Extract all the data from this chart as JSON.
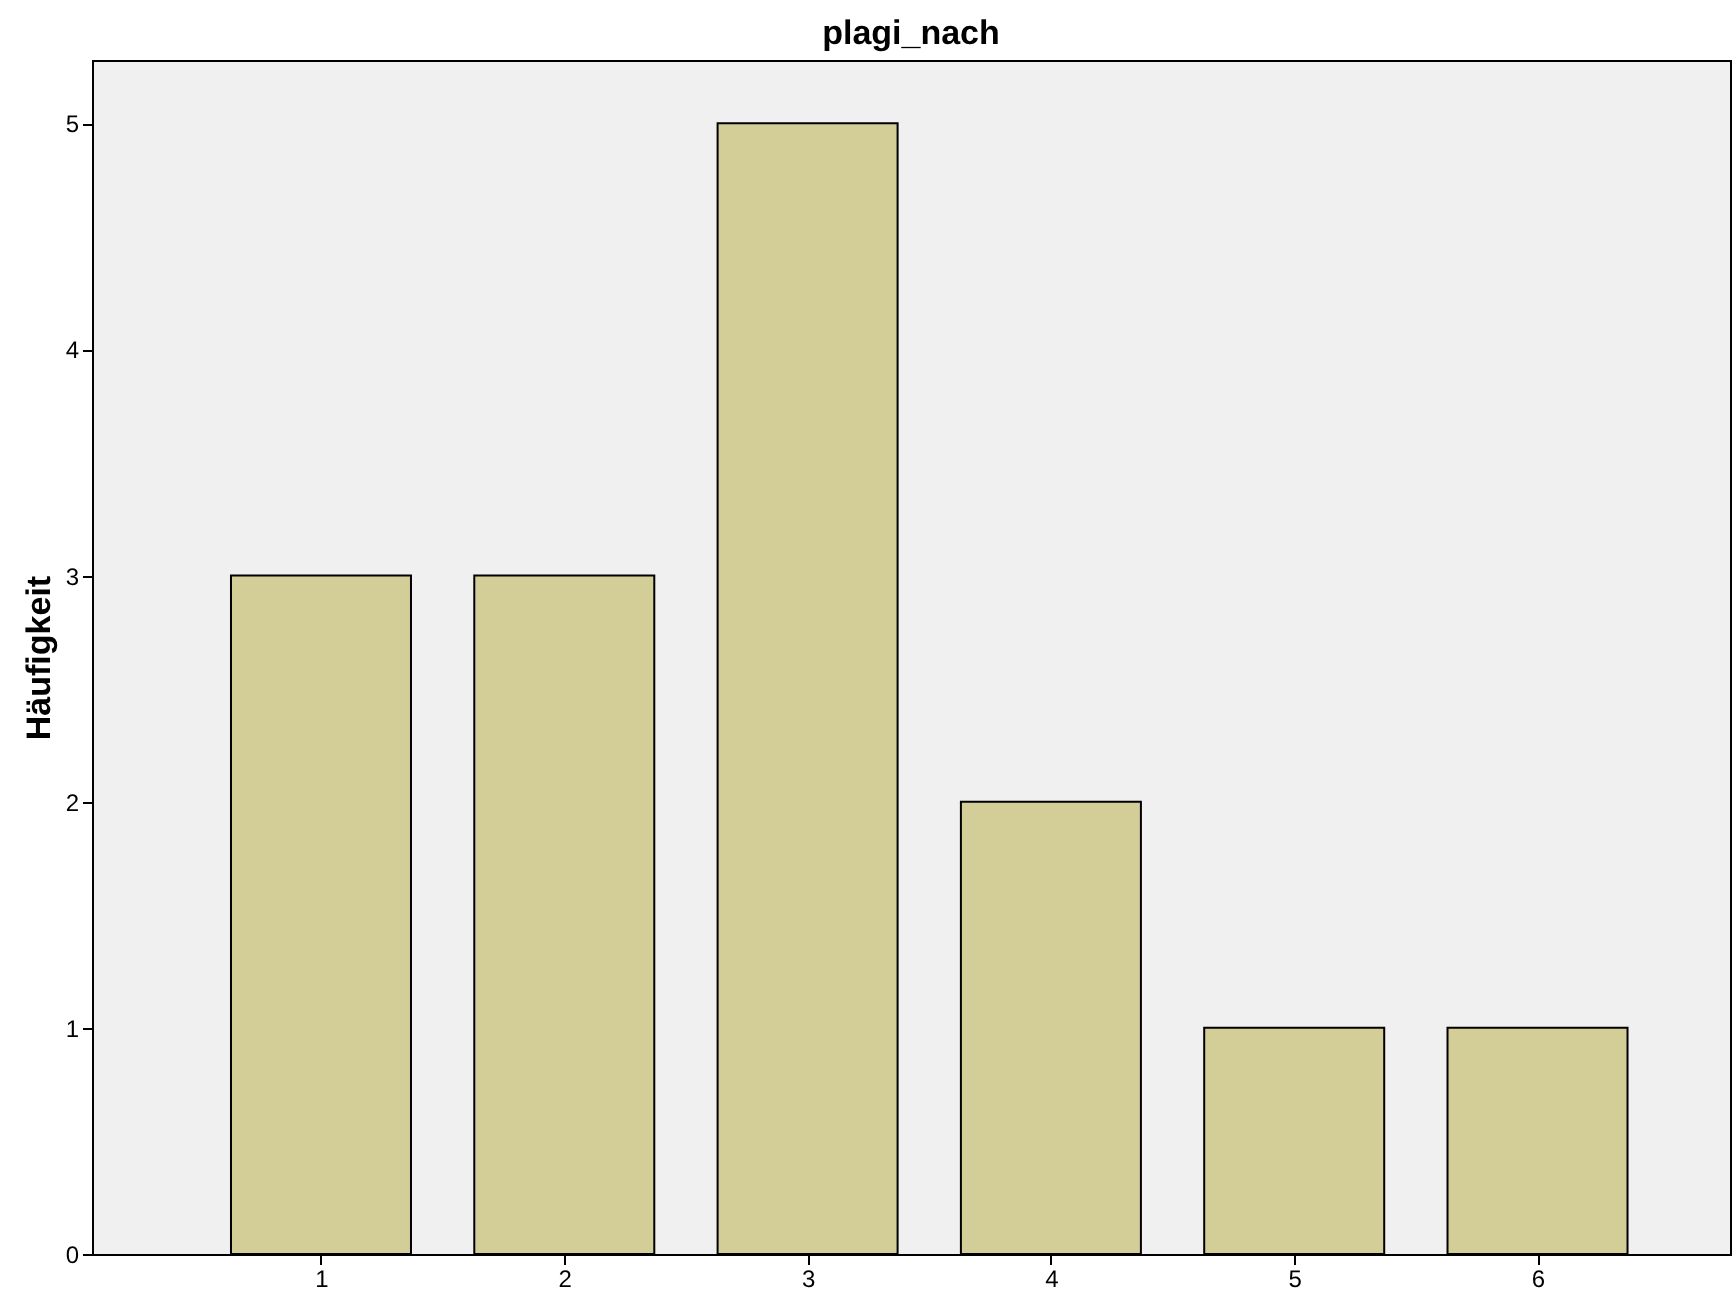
{
  "chart_data": {
    "type": "bar",
    "title": "plagi_nach",
    "ylabel": "Häufigkeit",
    "categories": [
      "1",
      "2",
      "3",
      "4",
      "5",
      "6"
    ],
    "values": [
      3,
      3,
      5,
      2,
      1,
      1
    ],
    "color": "#d3cd98",
    "ylim": [
      0,
      5.28
    ],
    "yticks": [
      0,
      1,
      2,
      3,
      4,
      5
    ],
    "grid": false
  }
}
